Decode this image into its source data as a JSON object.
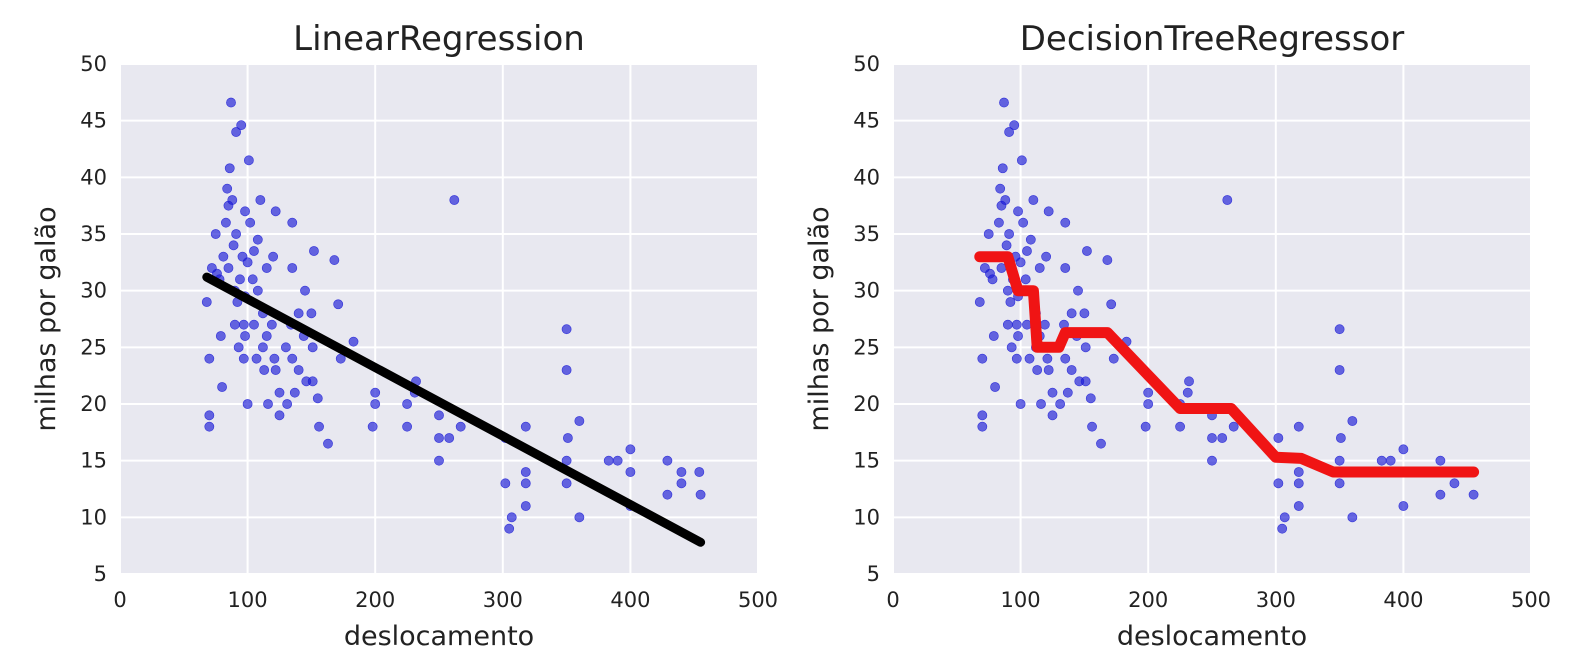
{
  "colors": {
    "plot_background": "#e8e8f0",
    "grid": "#ffffff",
    "points": "#1a1ad6",
    "linear_line": "#000000",
    "tree_line": "#f01414"
  },
  "chart_data": [
    {
      "type": "scatter",
      "title": "LinearRegression",
      "xlabel": "deslocamento",
      "ylabel": "milhas por galão",
      "xlim": [
        0,
        500
      ],
      "ylim": [
        5,
        50
      ],
      "xticks": [
        "0",
        "100",
        "200",
        "300",
        "400",
        "500"
      ],
      "yticks": [
        "5",
        "10",
        "15",
        "20",
        "25",
        "30",
        "35",
        "40",
        "45",
        "50"
      ],
      "grid": true,
      "fit_line": {
        "kind": "linear",
        "points": [
          [
            68,
            31.2
          ],
          [
            455,
            7.8
          ]
        ]
      }
    },
    {
      "type": "scatter",
      "title": "DecisionTreeRegressor",
      "xlabel": "deslocamento",
      "ylabel": "milhas por galão",
      "xlim": [
        0,
        500
      ],
      "ylim": [
        5,
        50
      ],
      "xticks": [
        "0",
        "100",
        "200",
        "300",
        "400",
        "500"
      ],
      "yticks": [
        "5",
        "10",
        "15",
        "20",
        "25",
        "30",
        "35",
        "40",
        "45",
        "50"
      ],
      "grid": true,
      "fit_line": {
        "kind": "step",
        "points": [
          [
            68,
            33
          ],
          [
            90,
            33
          ],
          [
            98,
            30
          ],
          [
            110,
            30
          ],
          [
            113,
            25
          ],
          [
            130,
            25
          ],
          [
            135,
            26.3
          ],
          [
            168,
            26.3
          ],
          [
            225,
            19.6
          ],
          [
            265,
            19.6
          ],
          [
            300,
            15.3
          ],
          [
            320,
            15.2
          ],
          [
            345,
            14
          ],
          [
            455,
            14
          ]
        ]
      }
    }
  ],
  "scatter_points": [
    [
      68,
      29
    ],
    [
      70,
      18
    ],
    [
      70,
      19
    ],
    [
      70,
      24
    ],
    [
      72,
      32
    ],
    [
      75,
      35
    ],
    [
      76,
      31.5
    ],
    [
      78,
      31
    ],
    [
      79,
      26
    ],
    [
      80,
      21.5
    ],
    [
      81,
      33
    ],
    [
      83,
      36
    ],
    [
      84,
      39
    ],
    [
      85,
      32
    ],
    [
      85,
      37.5
    ],
    [
      86,
      40.8
    ],
    [
      87,
      46.6
    ],
    [
      88,
      38
    ],
    [
      89,
      34
    ],
    [
      90,
      30
    ],
    [
      90,
      27
    ],
    [
      91,
      44
    ],
    [
      91,
      35
    ],
    [
      92,
      29
    ],
    [
      93,
      25
    ],
    [
      94,
      31
    ],
    [
      95,
      44.6
    ],
    [
      96,
      33
    ],
    [
      97,
      27
    ],
    [
      97,
      24
    ],
    [
      98,
      37
    ],
    [
      98,
      29.5
    ],
    [
      98,
      26
    ],
    [
      100,
      32.5
    ],
    [
      100,
      20
    ],
    [
      101,
      41.5
    ],
    [
      102,
      36
    ],
    [
      104,
      31
    ],
    [
      105,
      33.5
    ],
    [
      105,
      27
    ],
    [
      107,
      24
    ],
    [
      108,
      34.5
    ],
    [
      108,
      30
    ],
    [
      110,
      38
    ],
    [
      112,
      28
    ],
    [
      112,
      25
    ],
    [
      113,
      23
    ],
    [
      115,
      32
    ],
    [
      115,
      26
    ],
    [
      116,
      20
    ],
    [
      119,
      27
    ],
    [
      120,
      33
    ],
    [
      121,
      24
    ],
    [
      122,
      37
    ],
    [
      122,
      23
    ],
    [
      125,
      21
    ],
    [
      125,
      19
    ],
    [
      130,
      25
    ],
    [
      131,
      20
    ],
    [
      134,
      27
    ],
    [
      135,
      36
    ],
    [
      135,
      32
    ],
    [
      135,
      24
    ],
    [
      137,
      21
    ],
    [
      140,
      28
    ],
    [
      140,
      23
    ],
    [
      144,
      26
    ],
    [
      145,
      30
    ],
    [
      146,
      22
    ],
    [
      150,
      28
    ],
    [
      151,
      25
    ],
    [
      151,
      22
    ],
    [
      152,
      33.5
    ],
    [
      155,
      20.5
    ],
    [
      156,
      18
    ],
    [
      163,
      16.5
    ],
    [
      168,
      32.7
    ],
    [
      171,
      28.8
    ],
    [
      173,
      24
    ],
    [
      183,
      25.5
    ],
    [
      198,
      18
    ],
    [
      200,
      20
    ],
    [
      200,
      21
    ],
    [
      225,
      18
    ],
    [
      225,
      20
    ],
    [
      231,
      21
    ],
    [
      232,
      22
    ],
    [
      250,
      17
    ],
    [
      250,
      19
    ],
    [
      250,
      15
    ],
    [
      258,
      17
    ],
    [
      262,
      38
    ],
    [
      267,
      18
    ],
    [
      302,
      17
    ],
    [
      302,
      13
    ],
    [
      305,
      9
    ],
    [
      307,
      10
    ],
    [
      318,
      18
    ],
    [
      318,
      14
    ],
    [
      318,
      13
    ],
    [
      318,
      11
    ],
    [
      350,
      15
    ],
    [
      350,
      26.6
    ],
    [
      350,
      23
    ],
    [
      350,
      13
    ],
    [
      351,
      17
    ],
    [
      360,
      18.5
    ],
    [
      360,
      10
    ],
    [
      383,
      15
    ],
    [
      390,
      15
    ],
    [
      400,
      16
    ],
    [
      400,
      14
    ],
    [
      400,
      11
    ],
    [
      429,
      15
    ],
    [
      429,
      12
    ],
    [
      440,
      13
    ],
    [
      440,
      14
    ],
    [
      454,
      14
    ],
    [
      455,
      12
    ]
  ]
}
